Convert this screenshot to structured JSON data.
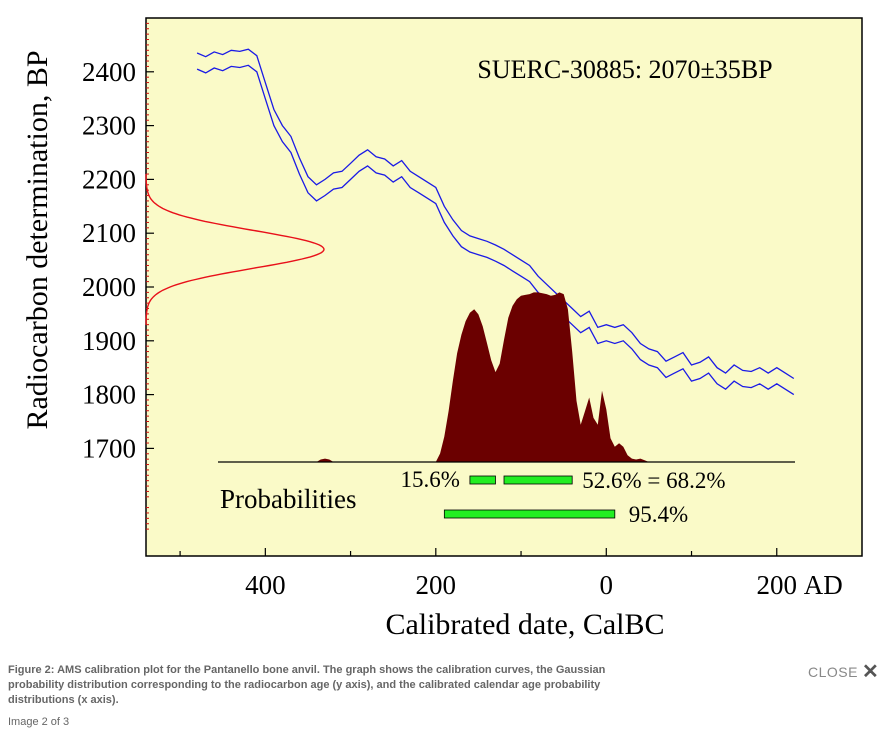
{
  "chart_data": {
    "type": "area",
    "title": "SUERC-30885: 2070±35BP",
    "ylabel": "Radiocarbon determination, BP",
    "xlabel": "Calibrated date, CalBC",
    "ylim": [
      1500,
      2500
    ],
    "y_ticks": [
      1700,
      1800,
      1900,
      2000,
      2100,
      2200,
      2300,
      2400
    ],
    "y_tick_labels": [
      "1700",
      "1800",
      "1900",
      "2000",
      "2100",
      "2200",
      "2300",
      "2400"
    ],
    "xlim": [
      -540,
      300
    ],
    "x_ticks": [
      -400,
      -200,
      0,
      200
    ],
    "x_tick_labels": [
      "400",
      "200",
      "0",
      "200"
    ],
    "x_suffix_label": "AD",
    "radiocarbon_gaussian": {
      "mean": 2070,
      "sigma": 35,
      "color": "#e8101a"
    },
    "calibration_curve": {
      "color": "#1a1ae6",
      "x": [
        -480,
        -470,
        -460,
        -450,
        -440,
        -430,
        -420,
        -410,
        -400,
        -390,
        -380,
        -370,
        -360,
        -350,
        -340,
        -330,
        -320,
        -310,
        -300,
        -290,
        -280,
        -270,
        -260,
        -250,
        -240,
        -230,
        -220,
        -210,
        -200,
        -190,
        -180,
        -170,
        -160,
        -150,
        -140,
        -130,
        -120,
        -110,
        -100,
        -90,
        -80,
        -70,
        -60,
        -50,
        -40,
        -30,
        -20,
        -10,
        0,
        10,
        20,
        30,
        40,
        50,
        60,
        70,
        80,
        90,
        100,
        110,
        120,
        130,
        140,
        150,
        160,
        170,
        180,
        190,
        200,
        210,
        220
      ],
      "upper": [
        2435,
        2428,
        2437,
        2432,
        2440,
        2438,
        2442,
        2430,
        2380,
        2330,
        2300,
        2280,
        2240,
        2205,
        2190,
        2200,
        2212,
        2215,
        2230,
        2245,
        2255,
        2242,
        2238,
        2225,
        2235,
        2215,
        2205,
        2195,
        2185,
        2150,
        2125,
        2105,
        2095,
        2090,
        2085,
        2078,
        2070,
        2060,
        2050,
        2040,
        2020,
        2005,
        1990,
        1975,
        1960,
        1945,
        1955,
        1925,
        1930,
        1925,
        1930,
        1915,
        1895,
        1885,
        1880,
        1862,
        1870,
        1878,
        1855,
        1860,
        1870,
        1850,
        1840,
        1855,
        1845,
        1843,
        1850,
        1840,
        1850,
        1840,
        1830
      ],
      "lower": [
        2405,
        2398,
        2407,
        2402,
        2410,
        2408,
        2412,
        2400,
        2350,
        2300,
        2270,
        2250,
        2210,
        2175,
        2160,
        2170,
        2182,
        2185,
        2200,
        2215,
        2225,
        2212,
        2208,
        2195,
        2205,
        2185,
        2175,
        2165,
        2155,
        2120,
        2095,
        2075,
        2065,
        2060,
        2055,
        2048,
        2040,
        2030,
        2020,
        2010,
        1990,
        1975,
        1960,
        1945,
        1930,
        1915,
        1925,
        1895,
        1900,
        1895,
        1900,
        1885,
        1865,
        1855,
        1850,
        1832,
        1840,
        1848,
        1825,
        1830,
        1840,
        1820,
        1810,
        1825,
        1815,
        1813,
        1820,
        1810,
        1820,
        1810,
        1800
      ]
    },
    "calibrated_distribution": {
      "color": "#6b0000",
      "baseline_bp": 1665,
      "peak_height_bp": 1990,
      "x": [
        -340,
        -335,
        -330,
        -325,
        -320,
        -200,
        -195,
        -190,
        -185,
        -180,
        -175,
        -170,
        -165,
        -160,
        -155,
        -150,
        -145,
        -140,
        -135,
        -130,
        -125,
        -120,
        -115,
        -110,
        -105,
        -100,
        -95,
        -90,
        -85,
        -80,
        -75,
        -70,
        -65,
        -60,
        -55,
        -50,
        -45,
        -40,
        -35,
        -30,
        -25,
        -20,
        -15,
        -10,
        -5,
        0,
        5,
        10,
        15,
        20,
        25,
        30,
        35,
        40,
        45,
        50
      ],
      "density": [
        0,
        0.015,
        0.02,
        0.015,
        0,
        0,
        0.05,
        0.15,
        0.3,
        0.48,
        0.64,
        0.75,
        0.83,
        0.88,
        0.9,
        0.87,
        0.8,
        0.7,
        0.6,
        0.53,
        0.58,
        0.72,
        0.85,
        0.92,
        0.96,
        0.98,
        0.985,
        0.99,
        1.0,
        1.0,
        0.995,
        0.99,
        0.98,
        0.985,
        1.0,
        0.99,
        0.9,
        0.65,
        0.36,
        0.22,
        0.3,
        0.38,
        0.26,
        0.22,
        0.42,
        0.31,
        0.14,
        0.09,
        0.11,
        0.09,
        0.04,
        0.02,
        0.015,
        0.02,
        0.01,
        0
      ]
    },
    "probability_ranges": {
      "label": "Probabilities",
      "bar_color": "#22ee22",
      "ranges_68": [
        {
          "from": -160,
          "to": -130,
          "label": "15.6%"
        },
        {
          "from": -120,
          "to": -40,
          "label": "52.6% = 68.2%"
        }
      ],
      "ranges_95": [
        {
          "from": -190,
          "to": 10,
          "label": "95.4%"
        }
      ]
    }
  },
  "caption": {
    "text": "Figure 2: AMS calibration plot for the Pantanello bone anvil. The graph shows the calibration curves, the Gaussian probability distribution corresponding to the radiocarbon age (y axis), and the calibrated calendar age probability distributions (x axis).",
    "image_counter": "Image 2 of 3",
    "close_label": "CLOSE"
  },
  "colors": {
    "plot_background": "#fafac8",
    "axis": "#000000",
    "caption_text": "#666666"
  }
}
